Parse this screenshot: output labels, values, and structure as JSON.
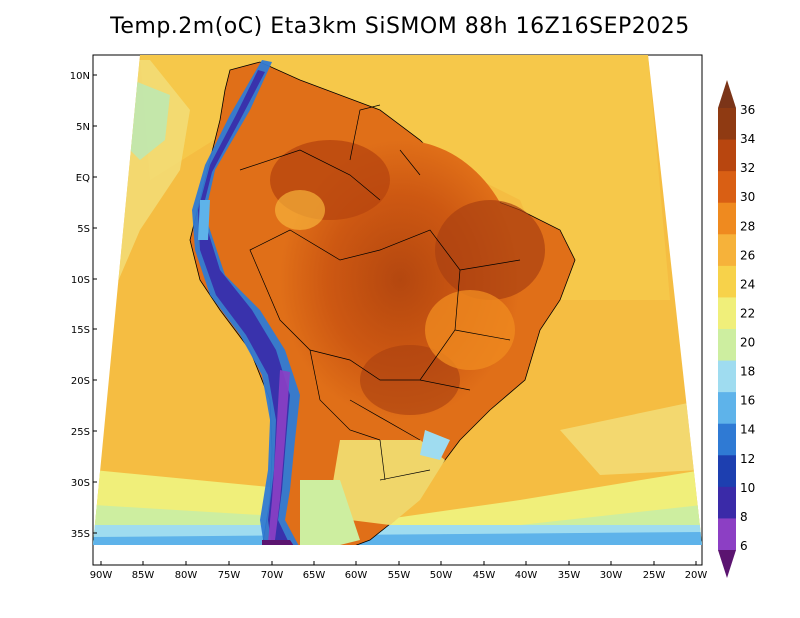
{
  "title": "Temp.2m(oC) Eta3km SiSMOM 88h 16Z16SEP2025",
  "map": {
    "region": "South America",
    "lat_labels": [
      "10N",
      "5N",
      "EQ",
      "5S",
      "10S",
      "15S",
      "20S",
      "25S",
      "30S",
      "35S"
    ],
    "lon_labels": [
      "90W",
      "85W",
      "80W",
      "75W",
      "70W",
      "65W",
      "60W",
      "55W",
      "50W",
      "45W",
      "40W",
      "35W",
      "30W",
      "25W",
      "20W"
    ]
  },
  "colorbar": {
    "labels": [
      "36",
      "34",
      "32",
      "30",
      "28",
      "26",
      "24",
      "22",
      "20",
      "18",
      "16",
      "14",
      "12",
      "10",
      "8",
      "6"
    ],
    "colors": [
      "#7b3418",
      "#8f3a12",
      "#b8460f",
      "#d95f14",
      "#ef8a1f",
      "#f6b23a",
      "#f7d24a",
      "#f0ef7a",
      "#cdeea0",
      "#9fdcf0",
      "#5eb3ea",
      "#2f7ad4",
      "#1d3fb0",
      "#3a2aa8",
      "#8c3fc4",
      "#5b1470"
    ]
  }
}
